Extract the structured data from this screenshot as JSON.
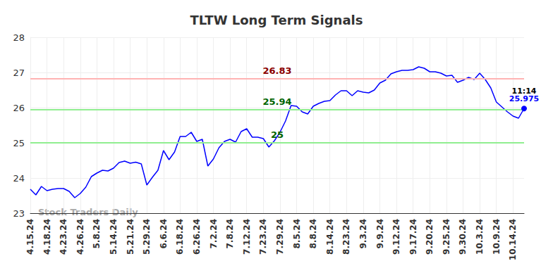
{
  "chart_data": {
    "type": "line",
    "title": "TLTW Long Term Signals",
    "watermark": "Stock Traders Daily",
    "categories": [
      "4.15.24",
      null,
      null,
      "4.18.24",
      null,
      null,
      "4.23.24",
      null,
      null,
      "4.26.24",
      null,
      null,
      "5.8.24",
      null,
      null,
      "5.14.24",
      null,
      null,
      "5.21.24",
      null,
      null,
      "5.29.24",
      null,
      null,
      "6.6.24",
      null,
      null,
      "6.18.24",
      null,
      null,
      "6.26.24",
      null,
      null,
      "7.2.24",
      null,
      null,
      "7.8.24",
      null,
      null,
      "7.12.24",
      null,
      null,
      "7.23.24",
      null,
      null,
      "7.29.24",
      null,
      null,
      "8.5.24",
      null,
      null,
      "8.8.24",
      null,
      null,
      "8.14.24",
      null,
      null,
      "8.23.24",
      null,
      null,
      "9.3.24",
      null,
      null,
      "9.9.24",
      null,
      null,
      "9.12.24",
      null,
      null,
      "9.17.24",
      null,
      null,
      "9.20.24",
      null,
      null,
      "9.25.24",
      null,
      null,
      "9.30.24",
      null,
      null,
      "10.3.24",
      null,
      null,
      "10.9.24",
      null,
      null,
      "10.14.24",
      null,
      null
    ],
    "values": [
      23.68,
      23.52,
      23.76,
      23.64,
      23.68,
      23.7,
      23.7,
      23.62,
      23.44,
      23.56,
      23.74,
      24.04,
      24.14,
      24.22,
      24.2,
      24.28,
      24.44,
      24.48,
      24.42,
      24.45,
      24.4,
      23.8,
      24.02,
      24.22,
      24.78,
      24.52,
      24.74,
      25.18,
      25.18,
      25.3,
      25.04,
      25.1,
      24.34,
      24.54,
      24.86,
      25.04,
      25.1,
      25.02,
      25.32,
      25.4,
      25.16,
      25.16,
      25.12,
      24.88,
      25.06,
      25.3,
      25.62,
      26.06,
      26.04,
      25.88,
      25.82,
      26.04,
      26.12,
      26.18,
      26.2,
      26.36,
      26.48,
      26.48,
      26.34,
      26.48,
      26.44,
      26.42,
      26.5,
      26.7,
      26.78,
      26.96,
      27.02,
      27.06,
      27.06,
      27.08,
      27.16,
      27.12,
      27.02,
      27.02,
      26.98,
      26.9,
      26.92,
      26.72,
      26.78,
      26.86,
      26.8,
      26.98,
      26.8,
      26.56,
      26.16,
      26.02,
      25.88,
      25.76,
      25.7,
      25.975
    ],
    "color": "#0000ff",
    "ylim": [
      23,
      28
    ],
    "yticks": [
      23,
      24,
      25,
      26,
      27,
      28
    ],
    "grid": true,
    "hlines": [
      {
        "value": 26.83,
        "color": "#ffb3b3"
      },
      {
        "value": 25.94,
        "color": "#90ee90"
      },
      {
        "value": 25,
        "color": "#90ee90"
      }
    ],
    "last_point": {
      "time": "11:14",
      "value": 25.975
    }
  }
}
